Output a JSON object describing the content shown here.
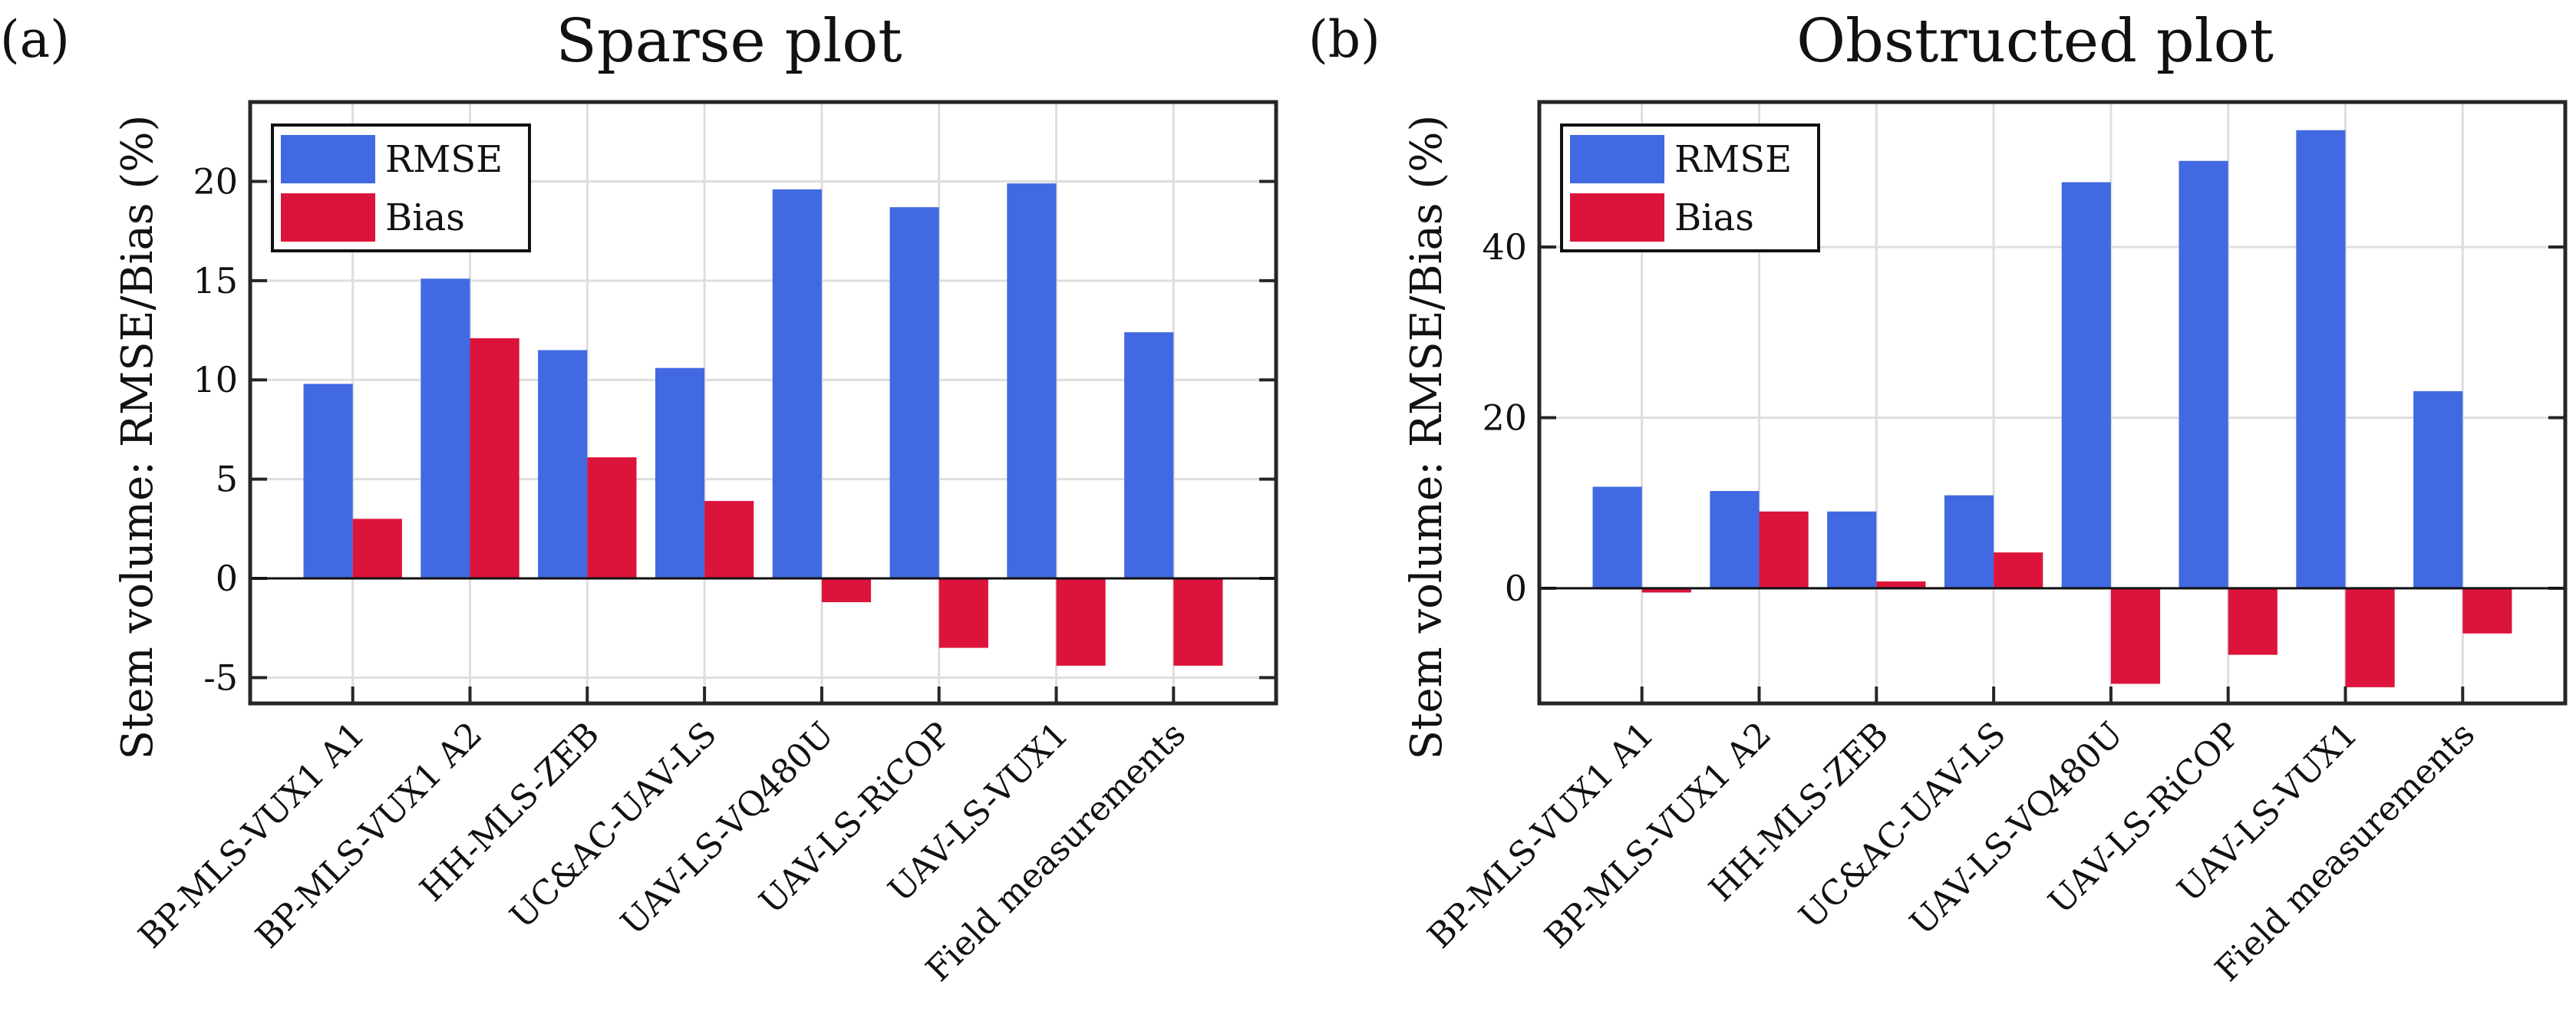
{
  "chart_data": [
    {
      "type": "bar",
      "panel_label": "(a)",
      "title": "Sparse plot",
      "xlabel": "",
      "ylabel": "Stem volume:  RMSE/Bias (%)",
      "categories": [
        "BP-MLS-VUX1 A1",
        "BP-MLS-VUX1 A2",
        "HH-MLS-ZEB",
        "UC&AC-UAV-LS",
        "UAV-LS-VQ480U",
        "UAV-LS-RiCOP",
        "UAV-LS-VUX1",
        "Field measurements"
      ],
      "series": [
        {
          "name": "RMSE",
          "color": "#4169E1",
          "values": [
            9.8,
            15.1,
            11.5,
            10.6,
            19.6,
            18.7,
            19.9,
            12.4
          ]
        },
        {
          "name": "Bias",
          "color": "#DC143C",
          "values": [
            3.0,
            12.1,
            6.1,
            3.9,
            -1.2,
            -3.5,
            -4.4,
            -4.4
          ]
        }
      ],
      "ylim": [
        -6.3,
        24
      ],
      "yticks": [
        -5,
        0,
        5,
        10,
        15,
        20
      ],
      "ytick_labels": [
        "-5",
        "0",
        "5",
        "10",
        "15",
        "20"
      ],
      "grid": true,
      "legend_location": "top-left"
    },
    {
      "type": "bar",
      "panel_label": "(b)",
      "title": "Obstructed plot",
      "xlabel": "",
      "ylabel": "Stem volume:  RMSE/Bias (%)",
      "categories": [
        "BP-MLS-VUX1 A1",
        "BP-MLS-VUX1 A2",
        "HH-MLS-ZEB",
        "UC&AC-UAV-LS",
        "UAV-LS-VQ480U",
        "UAV-LS-RiCOP",
        "UAV-LS-VUX1",
        "Field measurements"
      ],
      "series": [
        {
          "name": "RMSE",
          "color": "#4169E1",
          "values": [
            11.9,
            11.4,
            9.0,
            10.9,
            47.6,
            50.1,
            53.7,
            23.1
          ]
        },
        {
          "name": "Bias",
          "color": "#DC143C",
          "values": [
            -0.5,
            9.0,
            0.8,
            4.2,
            -11.2,
            -7.8,
            -11.6,
            -5.3
          ]
        }
      ],
      "ylim": [
        -13.5,
        57
      ],
      "yticks": [
        0,
        20,
        40
      ],
      "ytick_labels": [
        "0",
        "20",
        "40"
      ],
      "grid": true,
      "legend_location": "top-left"
    }
  ]
}
